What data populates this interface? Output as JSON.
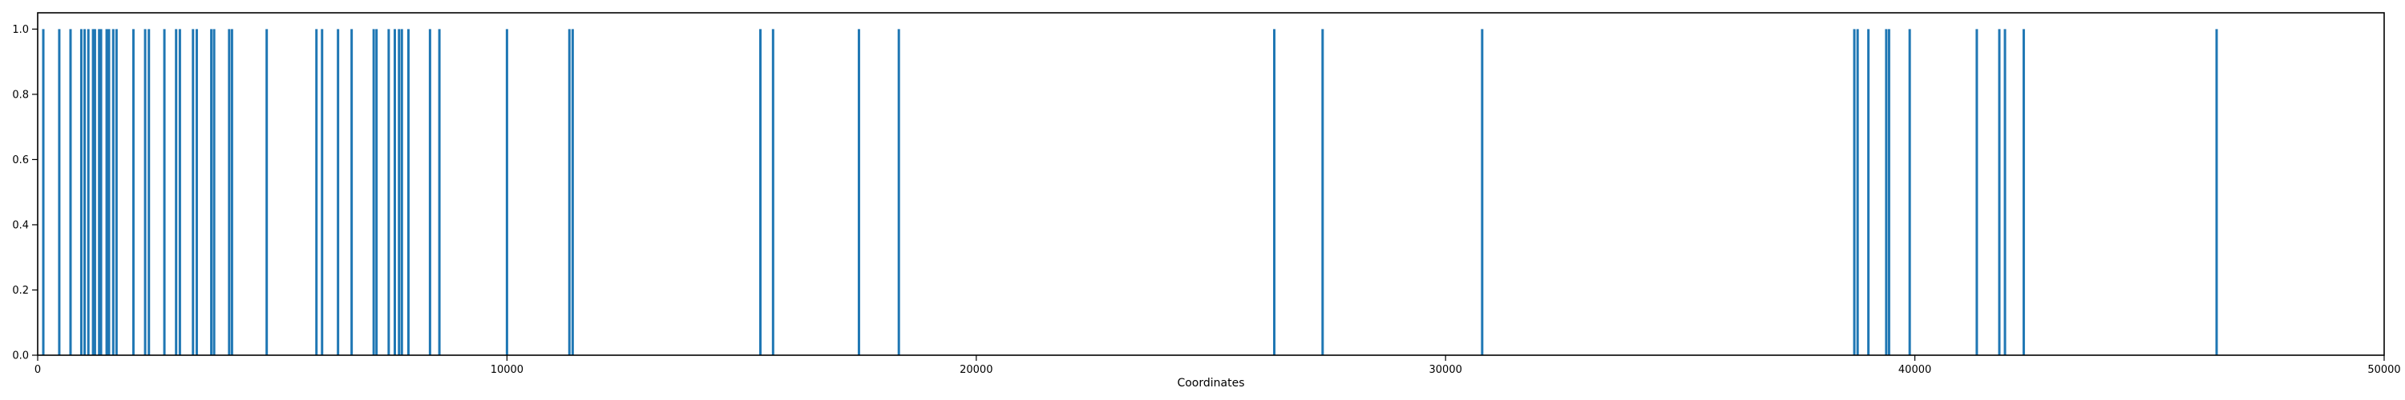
{
  "chart_data": {
    "type": "bar",
    "title": "",
    "xlabel": "Coordinates",
    "ylabel": "",
    "xlim": [
      0,
      50000
    ],
    "ylim": [
      0,
      1.05
    ],
    "grid": false,
    "legend": "none",
    "colors": {
      "bars": "#1f77b4",
      "axes": "#000000",
      "background": "#ffffff"
    },
    "x_ticks": [
      0,
      10000,
      20000,
      30000,
      40000,
      50000
    ],
    "x_tick_labels": [
      "0",
      "10000",
      "20000",
      "30000",
      "40000",
      "50000"
    ],
    "y_ticks": [
      0.0,
      0.2,
      0.4,
      0.6,
      0.8,
      1.0
    ],
    "y_tick_labels": [
      "0.0",
      "0.2",
      "0.4",
      "0.6",
      "0.8",
      "1.0"
    ],
    "x": [
      120,
      460,
      700,
      930,
      1000,
      1080,
      1180,
      1220,
      1310,
      1350,
      1470,
      1520,
      1610,
      1680,
      2040,
      2290,
      2370,
      2700,
      2950,
      3030,
      3310,
      3390,
      3700,
      3760,
      4080,
      4140,
      4880,
      5940,
      6060,
      6400,
      6690,
      7160,
      7220,
      7480,
      7610,
      7700,
      7760,
      7900,
      8360,
      8560,
      10000,
      11330,
      11400,
      15400,
      15670,
      17500,
      18350,
      26350,
      27380,
      30780,
      38710,
      38780,
      39010,
      39390,
      39450,
      39890,
      41320,
      41800,
      41920,
      42320,
      46430
    ],
    "values": [
      1,
      1,
      1,
      1,
      1,
      1,
      1,
      1,
      1,
      1,
      1,
      1,
      1,
      1,
      1,
      1,
      1,
      1,
      1,
      1,
      1,
      1,
      1,
      1,
      1,
      1,
      1,
      1,
      1,
      1,
      1,
      1,
      1,
      1,
      1,
      1,
      1,
      1,
      1,
      1,
      1,
      1,
      1,
      1,
      1,
      1,
      1,
      1,
      1,
      1,
      1,
      1,
      1,
      1,
      1,
      1,
      1,
      1,
      1,
      1,
      1
    ]
  }
}
